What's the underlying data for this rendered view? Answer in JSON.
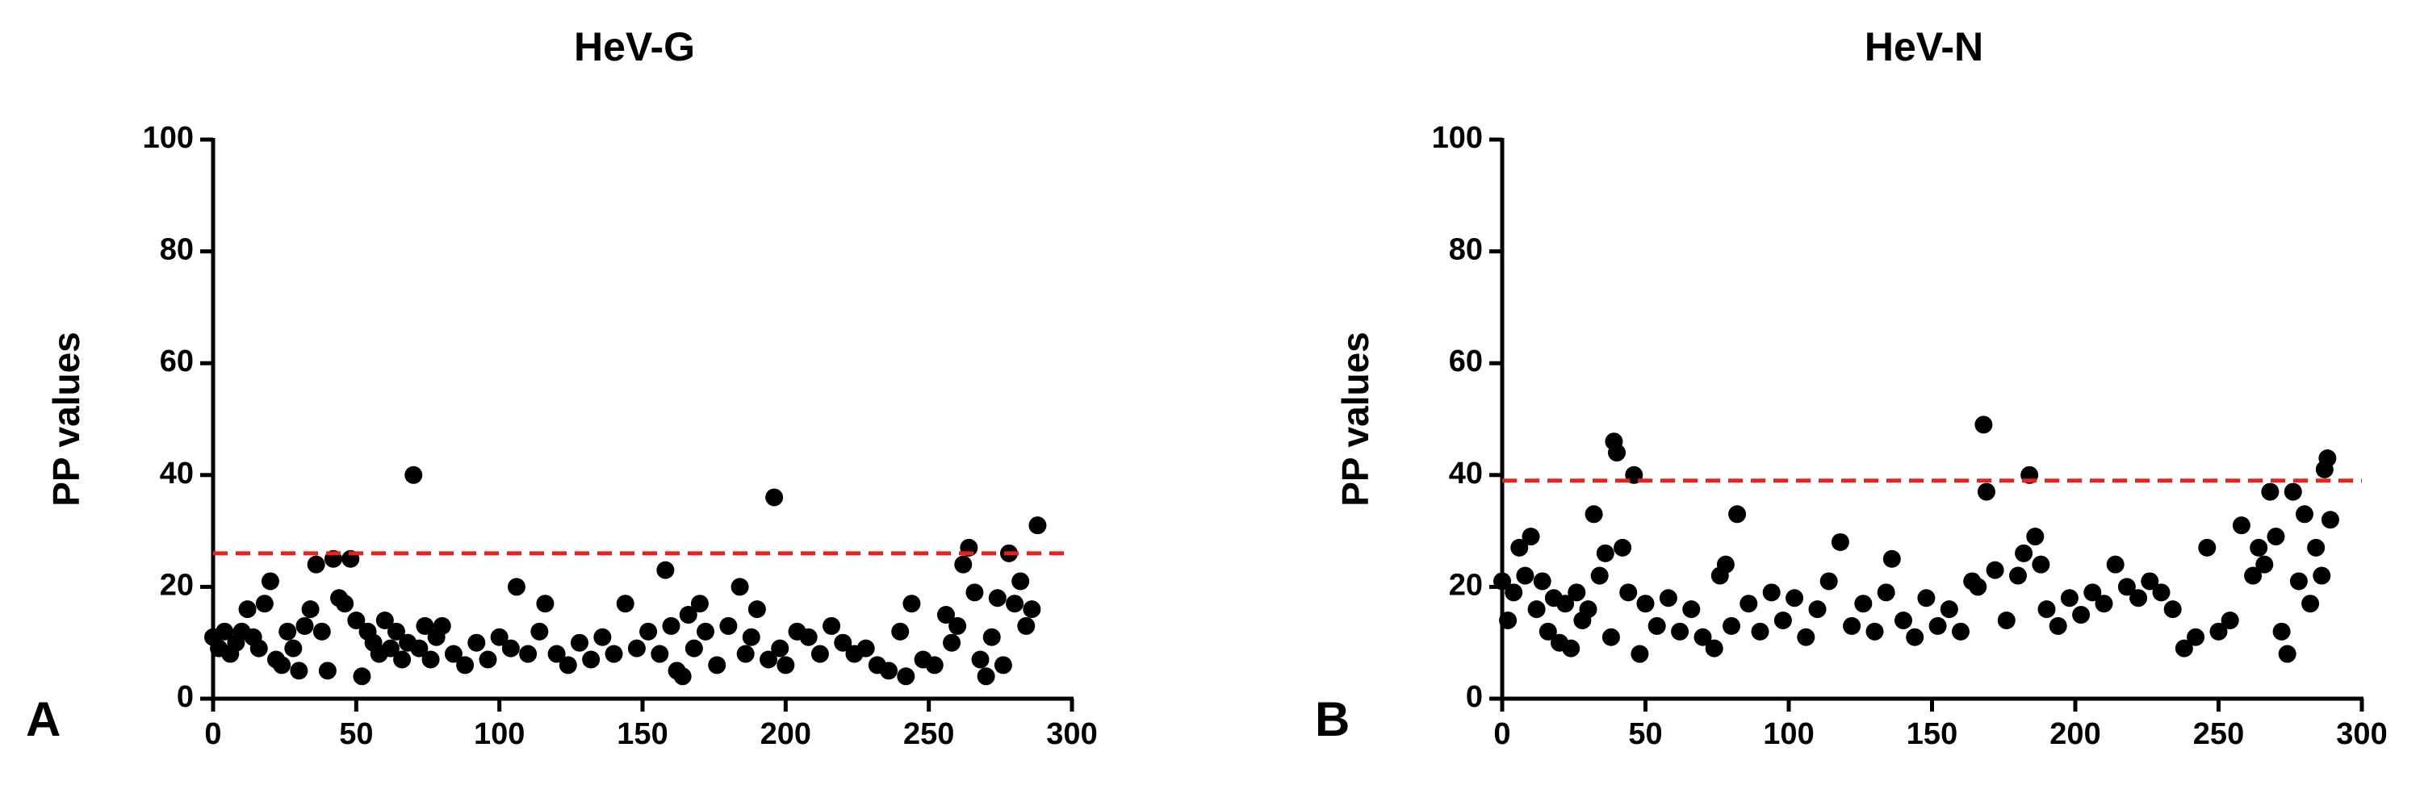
{
  "chart_data": [
    {
      "type": "scatter",
      "title": "HeV-G",
      "panel_label": "A",
      "y_label": "PP values",
      "color": "#000000",
      "xlim": [
        0,
        300
      ],
      "xticks": [
        0,
        50,
        100,
        150,
        200,
        250,
        300
      ],
      "ylim": [
        0,
        100
      ],
      "yticks": [
        0,
        20,
        40,
        60,
        80,
        100
      ],
      "threshold": {
        "value": 26,
        "color": "#e8211f"
      },
      "x": [
        0,
        2,
        4,
        6,
        8,
        10,
        12,
        14,
        16,
        18,
        20,
        22,
        24,
        26,
        28,
        30,
        32,
        34,
        36,
        38,
        40,
        42,
        44,
        46,
        48,
        50,
        52,
        54,
        56,
        58,
        60,
        62,
        64,
        66,
        68,
        70,
        72,
        74,
        76,
        78,
        80,
        84,
        88,
        92,
        96,
        100,
        104,
        106,
        110,
        114,
        116,
        120,
        124,
        128,
        132,
        136,
        140,
        144,
        148,
        152,
        156,
        158,
        160,
        162,
        164,
        166,
        168,
        170,
        172,
        176,
        180,
        184,
        186,
        188,
        190,
        194,
        196,
        198,
        200,
        204,
        208,
        212,
        216,
        220,
        224,
        228,
        232,
        236,
        240,
        242,
        244,
        248,
        252,
        256,
        258,
        260,
        262,
        264,
        266,
        268,
        270,
        272,
        274,
        276,
        278,
        280,
        282,
        284,
        286,
        288
      ],
      "values": [
        11,
        9,
        12,
        8,
        10,
        12,
        16,
        11,
        9,
        17,
        21,
        7,
        6,
        12,
        9,
        5,
        13,
        16,
        24,
        12,
        5,
        25,
        18,
        17,
        25,
        14,
        4,
        12,
        10,
        8,
        14,
        9,
        12,
        7,
        10,
        40,
        9,
        13,
        7,
        11,
        13,
        8,
        6,
        10,
        7,
        11,
        9,
        20,
        8,
        12,
        17,
        8,
        6,
        10,
        7,
        11,
        8,
        17,
        9,
        12,
        8,
        23,
        13,
        5,
        4,
        15,
        9,
        17,
        12,
        6,
        13,
        20,
        8,
        11,
        16,
        7,
        36,
        9,
        6,
        12,
        11,
        8,
        13,
        10,
        8,
        9,
        6,
        5,
        12,
        4,
        17,
        7,
        6,
        15,
        10,
        13,
        24,
        27,
        19,
        7,
        4,
        11,
        18,
        6,
        26,
        17,
        21,
        13,
        16,
        31
      ]
    },
    {
      "type": "scatter",
      "title": "HeV-N",
      "panel_label": "B",
      "y_label": "PP values",
      "color": "#000000",
      "xlim": [
        0,
        300
      ],
      "xticks": [
        0,
        50,
        100,
        150,
        200,
        250,
        300
      ],
      "ylim": [
        0,
        100
      ],
      "yticks": [
        0,
        20,
        40,
        60,
        80,
        100
      ],
      "threshold": {
        "value": 39,
        "color": "#e8211f"
      },
      "x": [
        0,
        2,
        4,
        6,
        8,
        10,
        12,
        14,
        16,
        18,
        20,
        22,
        24,
        26,
        28,
        30,
        32,
        34,
        36,
        38,
        39,
        40,
        42,
        44,
        46,
        48,
        50,
        54,
        58,
        62,
        66,
        70,
        74,
        76,
        78,
        80,
        82,
        86,
        90,
        94,
        98,
        102,
        106,
        110,
        114,
        118,
        122,
        126,
        130,
        134,
        136,
        140,
        144,
        148,
        152,
        156,
        160,
        164,
        166,
        168,
        169,
        172,
        176,
        180,
        182,
        184,
        186,
        188,
        190,
        194,
        198,
        202,
        206,
        210,
        214,
        218,
        222,
        226,
        230,
        234,
        238,
        242,
        246,
        250,
        254,
        258,
        262,
        264,
        266,
        268,
        270,
        272,
        274,
        276,
        278,
        280,
        282,
        284,
        286,
        287,
        288,
        289
      ],
      "values": [
        21,
        14,
        19,
        27,
        22,
        29,
        16,
        21,
        12,
        18,
        10,
        17,
        9,
        19,
        14,
        16,
        33,
        22,
        26,
        11,
        46,
        44,
        27,
        19,
        40,
        8,
        17,
        13,
        18,
        12,
        16,
        11,
        9,
        22,
        24,
        13,
        33,
        17,
        12,
        19,
        14,
        18,
        11,
        16,
        21,
        28,
        13,
        17,
        12,
        19,
        25,
        14,
        11,
        18,
        13,
        16,
        12,
        21,
        20,
        49,
        37,
        23,
        14,
        22,
        26,
        40,
        29,
        24,
        16,
        13,
        18,
        15,
        19,
        17,
        24,
        20,
        18,
        21,
        19,
        16,
        9,
        11,
        27,
        12,
        14,
        31,
        22,
        27,
        24,
        37,
        29,
        12,
        8,
        37,
        21,
        33,
        17,
        27,
        22,
        41,
        43,
        32
      ]
    }
  ]
}
